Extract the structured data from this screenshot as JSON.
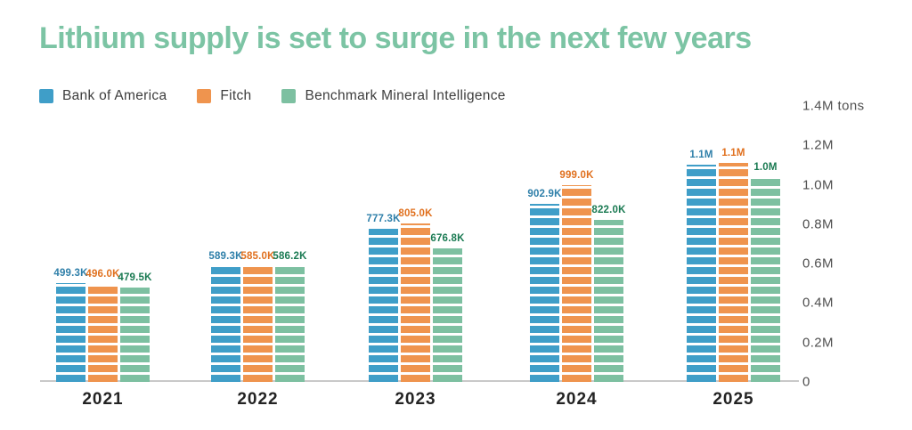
{
  "chart_data": {
    "type": "bar",
    "title": "Lithium supply is set to surge in the next few years",
    "title_color": "#7cc4a4",
    "categories": [
      "2021",
      "2022",
      "2023",
      "2024",
      "2025"
    ],
    "series": [
      {
        "name": "Bank of America",
        "color": "#3f9ec8",
        "label_color": "#2e7fa9",
        "values": [
          499300,
          589300,
          777300,
          902900,
          1100000
        ],
        "labels": [
          "499.3K",
          "589.3K",
          "777.3K",
          "902.9K",
          "1.1M"
        ]
      },
      {
        "name": "Fitch",
        "color": "#ef944e",
        "label_color": "#e0701e",
        "values": [
          496000,
          585000,
          805000,
          999000,
          1110000
        ],
        "labels": [
          "496.0K",
          "585.0K",
          "805.0K",
          "999.0K",
          "1.1M"
        ]
      },
      {
        "name": "Benchmark Mineral Intelligence",
        "color": "#7dc0a1",
        "label_color": "#1a7a52",
        "values": [
          479500,
          586200,
          676800,
          822000,
          1040000
        ],
        "labels": [
          "479.5K",
          "586.2K",
          "676.8K",
          "822.0K",
          "1.0M"
        ]
      }
    ],
    "y_axis": {
      "unit": "tons",
      "max": 1400000,
      "ticks": [
        {
          "label": "1.4M tons",
          "value": 1400000
        },
        {
          "label": "1.2M",
          "value": 1200000
        },
        {
          "label": "1.0M",
          "value": 1000000
        },
        {
          "label": "0.8M",
          "value": 800000
        },
        {
          "label": "0.6M",
          "value": 600000
        },
        {
          "label": "0.4M",
          "value": 400000
        },
        {
          "label": "0.2M",
          "value": 200000
        },
        {
          "label": "0",
          "value": 0
        }
      ]
    },
    "ylim": [
      0,
      1400000
    ],
    "grid": false,
    "value_labels": true,
    "legend_position": "top-left",
    "axis_color": "#c9c9c9",
    "tick_text_color": "#4f4f4f",
    "category_text_color": "#232323",
    "legend_text_color": "#3d3d3d"
  }
}
